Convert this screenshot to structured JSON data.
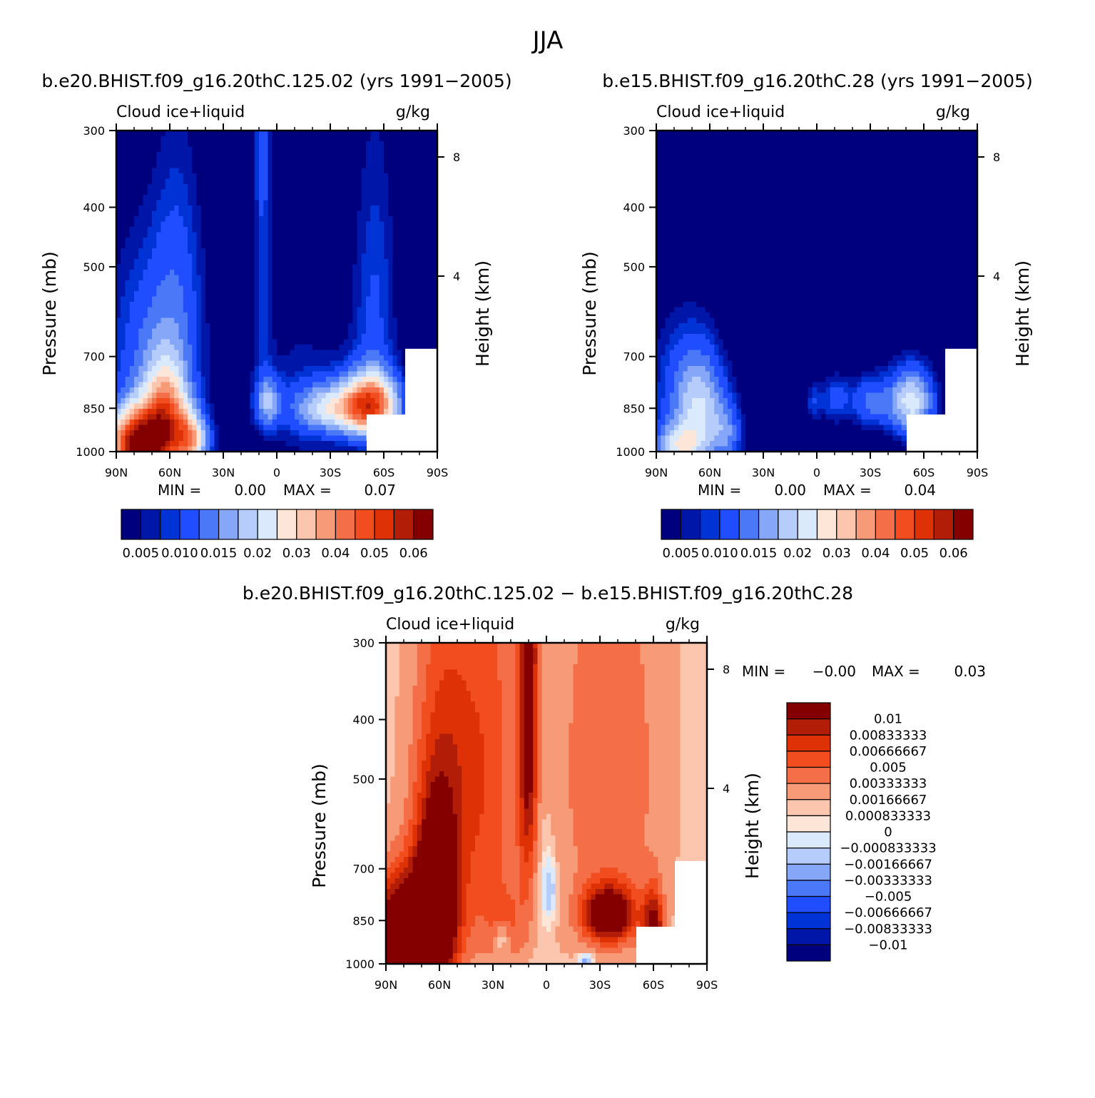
{
  "figure": {
    "title": "JJA"
  },
  "palette": {
    "colors": [
      "#00007f",
      "#0016a8",
      "#0033d6",
      "#1f4dff",
      "#4b78f7",
      "#86a6f7",
      "#b6ccfb",
      "#dae9fb",
      "#fde6d8",
      "#fbc6ad",
      "#f79a78",
      "#f46f48",
      "#f24d1f",
      "#de3105",
      "#b21d08",
      "#840000"
    ]
  },
  "chart_data": [
    {
      "type": "contour",
      "panel_title": "b.e20.BHIST.f09_g16.20thC.125.02 (yrs 1991−2005)",
      "field_label": "Cloud ice+liquid",
      "units": "g/kg",
      "ylabel": "Pressure (mb)",
      "y2label": "Height (km)",
      "x_ticks": [
        "90N",
        "60N",
        "30N",
        "0",
        "30S",
        "60S",
        "90S"
      ],
      "y_ticks": [
        "300",
        "400",
        "500",
        "700",
        "850",
        "1000"
      ],
      "y2_ticks": [
        "8",
        "4"
      ],
      "min_label": "MIN =",
      "min_value": "0.00",
      "max_label": "MAX =",
      "max_value": "0.07",
      "colorbar_labels": [
        "0.005",
        "0.010",
        "0.015",
        "0.02",
        "0.03",
        "0.04",
        "0.05",
        "0.06"
      ],
      "field": {
        "scale": 0.065,
        "base": 0,
        "blobs": [
          {
            "lat": 78,
            "p": 975,
            "sx": 12,
            "sp": 90,
            "a": 1.05
          },
          {
            "lat": 62,
            "p": 880,
            "sx": 9,
            "sp": 120,
            "a": 0.62
          },
          {
            "lat": 48,
            "p": 960,
            "sx": 7,
            "sp": 70,
            "a": 0.55
          },
          {
            "lat": 70,
            "p": 700,
            "sx": 18,
            "sp": 200,
            "a": 0.22
          },
          {
            "lat": 55,
            "p": 520,
            "sx": 10,
            "sp": 200,
            "a": 0.12
          },
          {
            "lat": -53,
            "p": 840,
            "sx": 11,
            "sp": 70,
            "a": 0.78
          },
          {
            "lat": -30,
            "p": 850,
            "sx": 14,
            "sp": 55,
            "a": 0.42
          },
          {
            "lat": 5,
            "p": 830,
            "sx": 5,
            "sp": 55,
            "a": 0.32
          },
          {
            "lat": -55,
            "p": 600,
            "sx": 9,
            "sp": 250,
            "a": 0.16
          },
          {
            "lat": 8,
            "p": 480,
            "sx": 4,
            "sp": 220,
            "a": 0.13
          },
          {
            "lat": 8,
            "p": 320,
            "sx": 3,
            "sp": 60,
            "a": 0.09
          },
          {
            "lat": -15,
            "p": 820,
            "sx": 20,
            "sp": 200,
            "a": 0.1
          }
        ]
      }
    },
    {
      "type": "contour",
      "panel_title": "b.e15.BHIST.f09_g16.20thC.28 (yrs 1991−2005)",
      "field_label": "Cloud ice+liquid",
      "units": "g/kg",
      "ylabel": "Pressure (mb)",
      "y2label": "Height (km)",
      "x_ticks": [
        "90N",
        "60N",
        "30N",
        "0",
        "30S",
        "60S",
        "90S"
      ],
      "y_ticks": [
        "300",
        "400",
        "500",
        "700",
        "850",
        "1000"
      ],
      "y2_ticks": [
        "8",
        "4"
      ],
      "min_label": "MIN =",
      "min_value": "0.00",
      "max_label": "MAX =",
      "max_value": "0.04",
      "colorbar_labels": [
        "0.005",
        "0.010",
        "0.015",
        "0.02",
        "0.03",
        "0.04",
        "0.05",
        "0.06"
      ],
      "field": {
        "scale": 0.065,
        "base": 0,
        "blobs": [
          {
            "lat": -53,
            "p": 830,
            "sx": 9,
            "sp": 75,
            "a": 0.5
          },
          {
            "lat": -30,
            "p": 830,
            "sx": 8,
            "sp": 60,
            "a": 0.24
          },
          {
            "lat": -10,
            "p": 820,
            "sx": 6,
            "sp": 55,
            "a": 0.18
          },
          {
            "lat": 2,
            "p": 830,
            "sx": 3,
            "sp": 45,
            "a": 0.13
          },
          {
            "lat": 65,
            "p": 860,
            "sx": 10,
            "sp": 120,
            "a": 0.36
          },
          {
            "lat": 78,
            "p": 985,
            "sx": 10,
            "sp": 60,
            "a": 0.4
          },
          {
            "lat": 50,
            "p": 940,
            "sx": 6,
            "sp": 80,
            "a": 0.22
          },
          {
            "lat": 75,
            "p": 780,
            "sx": 14,
            "sp": 150,
            "a": 0.16
          }
        ]
      }
    },
    {
      "type": "contour",
      "panel_title": "b.e20.BHIST.f09_g16.20thC.125.02 − b.e15.BHIST.f09_g16.20thC.28",
      "field_label": "Cloud ice+liquid",
      "units": "g/kg",
      "ylabel": "Pressure (mb)",
      "y2label": "Height (km)",
      "x_ticks": [
        "90N",
        "60N",
        "30N",
        "0",
        "30S",
        "60S",
        "90S"
      ],
      "y_ticks": [
        "300",
        "400",
        "500",
        "700",
        "850",
        "1000"
      ],
      "y2_ticks": [
        "8",
        "4"
      ],
      "min_label": "MIN =",
      "min_value": "−0.00",
      "max_label": "MAX =",
      "max_value": "0.03",
      "colorbar_labels": [
        "0.01",
        "0.00833333",
        "0.00666667",
        "0.005",
        "0.00333333",
        "0.00166667",
        "0.000833333",
        "0",
        "−0.000833333",
        "−0.00166667",
        "−0.00333333",
        "−0.005",
        "−0.00666667",
        "−0.00833333",
        "−0.01"
      ],
      "field": {
        "scale": 0.011,
        "base": 0.09,
        "blobs": [
          {
            "lat": 78,
            "p": 930,
            "sx": 14,
            "sp": 140,
            "a": 1.8
          },
          {
            "lat": 62,
            "p": 780,
            "sx": 8,
            "sp": 180,
            "a": 1.1
          },
          {
            "lat": 55,
            "p": 500,
            "sx": 14,
            "sp": 260,
            "a": 0.55
          },
          {
            "lat": 10,
            "p": 480,
            "sx": 4,
            "sp": 180,
            "a": 0.85
          },
          {
            "lat": 10,
            "p": 300,
            "sx": 3,
            "sp": 50,
            "a": 0.6
          },
          {
            "lat": -35,
            "p": 830,
            "sx": 10,
            "sp": 60,
            "a": 1.2
          },
          {
            "lat": -60,
            "p": 900,
            "sx": 4,
            "sp": 100,
            "a": 1.0
          },
          {
            "lat": -35,
            "p": 480,
            "sx": 22,
            "sp": 300,
            "a": 0.35
          },
          {
            "lat": 30,
            "p": 480,
            "sx": 12,
            "sp": 300,
            "a": 0.35
          },
          {
            "lat": 20,
            "p": 860,
            "sx": 12,
            "sp": 100,
            "a": 0.25
          },
          {
            "lat": 25,
            "p": 910,
            "sx": 2.5,
            "sp": 30,
            "a": -0.35
          },
          {
            "lat": -2,
            "p": 760,
            "sx": 3,
            "sp": 70,
            "a": -0.3
          },
          {
            "lat": -22,
            "p": 985,
            "sx": 3,
            "sp": 20,
            "a": -0.35
          },
          {
            "lat": 5,
            "p": 700,
            "sx": 5,
            "sp": 250,
            "a": -0.15
          }
        ]
      }
    }
  ]
}
